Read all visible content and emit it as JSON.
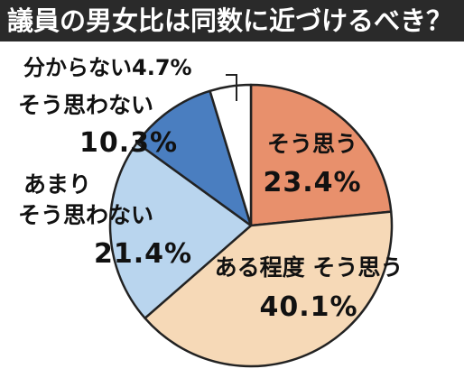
{
  "chart_data": {
    "type": "pie",
    "title": "議員の男女比は同数に近づけるべき？",
    "categories": [
      "そう思う",
      "ある程度そう思う",
      "あまりそう思わない",
      "そう思わない",
      "分からない"
    ],
    "values": [
      23.4,
      40.1,
      21.4,
      10.3,
      4.7
    ],
    "value_labels": [
      "23.4%",
      "40.1%",
      "21.4%",
      "10.3%",
      "4.7%"
    ],
    "colors": [
      "#e8906c",
      "#f6d9b7",
      "#b9d5ee",
      "#4a7ec0",
      "#ffffff"
    ],
    "label_lines": [
      [
        "そう思う",
        "23.4%"
      ],
      [
        "ある程度 そう思う",
        "40.1%"
      ],
      [
        "あまり",
        "そう思わない",
        "21.4%"
      ],
      [
        "そう思わない",
        "10.3%"
      ],
      [
        "分からない4.7%"
      ]
    ],
    "start": "12 o'clock",
    "direction": "clockwise",
    "legend": "none"
  }
}
